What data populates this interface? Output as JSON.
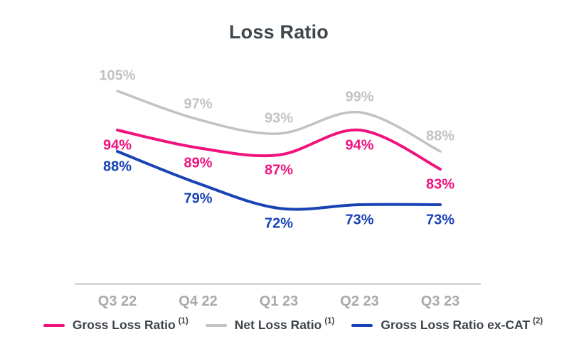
{
  "title": "Loss Ratio",
  "colors": {
    "gross_loss_ratio": "#F0127D",
    "net_loss_ratio": "#C2C2C4",
    "gross_loss_ratio_ex_cat": "#1843B5",
    "axis_line": "#D9D9D9",
    "axis_label_text": "#A6AAAD",
    "heading_text": "#3F464C",
    "legend_text": "#3E444A"
  },
  "chart_data": {
    "type": "line",
    "title": "Loss Ratio",
    "categories": [
      "Q3 22",
      "Q4 22",
      "Q1 23",
      "Q2 23",
      "Q3 23"
    ],
    "unit": "%",
    "ylim": [
      65,
      112
    ],
    "grid": false,
    "y_axis_visible": false,
    "line_style": "smooth",
    "legend_position": "bottom",
    "series": [
      {
        "name": "Gross Loss Ratio",
        "footnote": "(1)",
        "color": "gross_loss_ratio",
        "values": [
          94,
          89,
          87,
          94,
          83
        ],
        "label_position": "below"
      },
      {
        "name": "Net Loss Ratio",
        "footnote": "(1)",
        "color": "net_loss_ratio",
        "values": [
          105,
          97,
          93,
          99,
          88
        ],
        "label_position": "above"
      },
      {
        "name": "Gross Loss Ratio ex-CAT",
        "footnote": "(2)",
        "color": "gross_loss_ratio_ex_cat",
        "values": [
          88,
          79,
          72,
          73,
          73
        ],
        "label_position": "below"
      }
    ]
  }
}
